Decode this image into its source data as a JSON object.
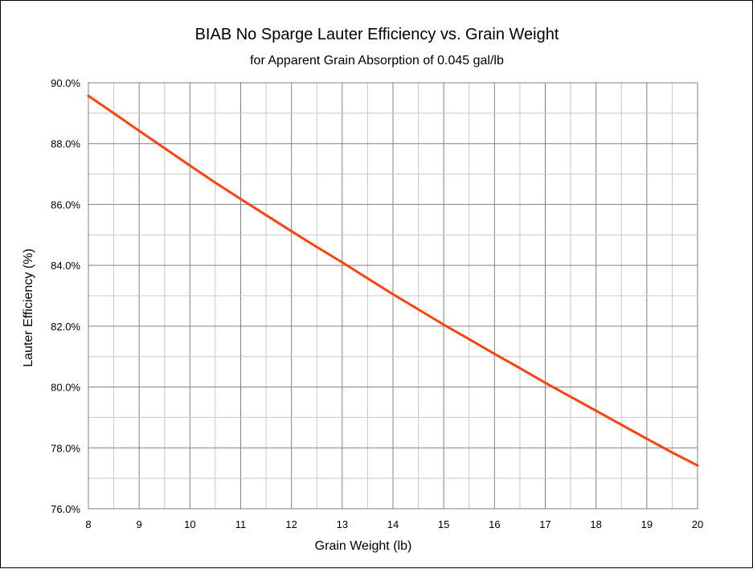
{
  "chart_data": {
    "type": "line",
    "title": "BIAB No Sparge Lauter Efficiency vs. Grain Weight",
    "subtitle": "for Apparent Grain Absorption of 0.045 gal/lb",
    "xlabel": "Grain Weight (lb)",
    "ylabel": "Lauter Efficiency (%)",
    "xlim": [
      8,
      20
    ],
    "ylim": [
      76.0,
      90.0
    ],
    "x_ticks": [
      "8",
      "9",
      "10",
      "11",
      "12",
      "13",
      "14",
      "15",
      "16",
      "17",
      "18",
      "19",
      "20"
    ],
    "y_ticks": [
      "76.0%",
      "78.0%",
      "80.0%",
      "82.0%",
      "84.0%",
      "86.0%",
      "88.0%",
      "90.0%"
    ],
    "grid": true,
    "series_color": "#ff420e",
    "series": [
      {
        "x": [
          8,
          8.5,
          9,
          9.5,
          10,
          10.5,
          11,
          11.5,
          12,
          12.5,
          13,
          13.5,
          14,
          14.5,
          15,
          15.5,
          16,
          16.5,
          17,
          17.5,
          18,
          18.5,
          19,
          19.5,
          20
        ],
        "values": [
          89.57,
          89.0,
          88.42,
          87.85,
          87.28,
          86.72,
          86.18,
          85.65,
          85.12,
          84.6,
          84.1,
          83.57,
          83.05,
          82.55,
          82.05,
          81.57,
          81.09,
          80.62,
          80.14,
          79.68,
          79.22,
          78.76,
          78.3,
          77.85,
          77.42
        ]
      }
    ]
  }
}
